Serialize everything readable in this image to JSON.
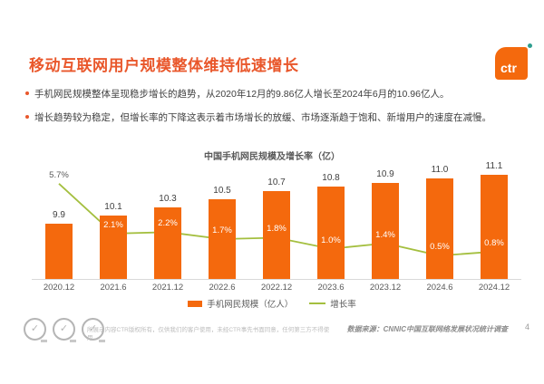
{
  "header": {
    "title": "移动互联网用户规模整体维持低速增长",
    "logo_text": "ctr"
  },
  "bullets": [
    {
      "text": "手机网民规模整体呈现稳步增长的趋势，从2020年12月的9.86亿人增长至2024年6月的10.96亿人。"
    },
    {
      "text": "增长趋势较为稳定，但增长率的下降这表示着市场增长的放缓、市场逐渐趋于饱和、新增用户的速度在减慢。"
    }
  ],
  "chart_data": {
    "type": "bar",
    "title": "中国手机网民规模及增长率（亿）",
    "categories": [
      "2020.12",
      "2021.6",
      "2021.12",
      "2022.6",
      "2022.12",
      "2023.6",
      "2023.12",
      "2024.6",
      "2024.12"
    ],
    "series": [
      {
        "name": "手机网民规模（亿人）",
        "type": "bar",
        "color": "#F4690D",
        "values": [
          9.9,
          10.1,
          10.3,
          10.5,
          10.7,
          10.8,
          10.9,
          11.0,
          11.1
        ]
      },
      {
        "name": "增长率",
        "type": "line",
        "color": "#A4BF3F",
        "values_pct": [
          5.7,
          2.1,
          2.2,
          1.7,
          1.8,
          1.0,
          1.4,
          0.5,
          0.8
        ],
        "labels": [
          "5.7%",
          "2.1%",
          "2.2%",
          "1.7%",
          "1.8%",
          "1.0%",
          "1.4%",
          "0.5%",
          "0.8%"
        ]
      }
    ],
    "ylabel": "",
    "xlabel": "",
    "legend_position": "bottom",
    "gridlines": false
  },
  "footer": {
    "disclaimer": "所展示内容CTR版权所有，仅供我们的客户使用，未经CTR事先书面同意，任何第三方不得使用。",
    "source": "数据来源：CNNIC中国互联网络发展状况统计调查",
    "page_number": "4"
  }
}
